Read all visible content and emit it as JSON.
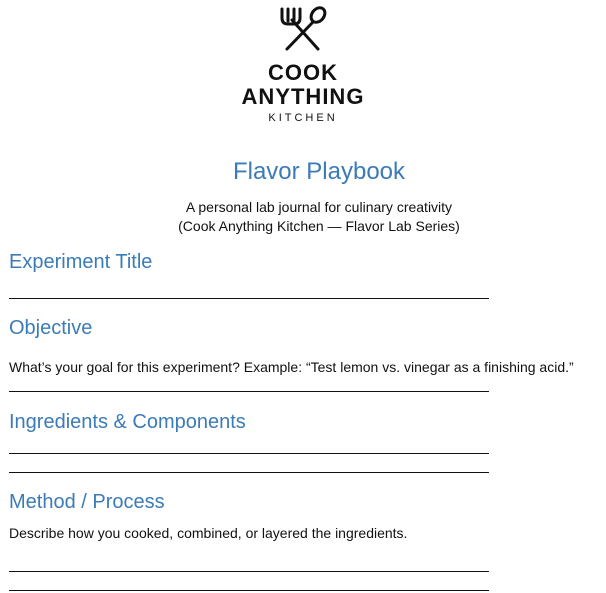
{
  "logo": {
    "icon": "crossed-fork-spoon-icon",
    "line1": "COOK",
    "line2": "ANYTHING",
    "sub": "KITCHEN"
  },
  "doc": {
    "title": "Flavor Playbook",
    "subtitle_line1": "A personal lab journal for culinary creativity",
    "subtitle_line2": "(Cook Anything Kitchen — Flavor Lab Series)"
  },
  "sections": {
    "experiment_title": {
      "heading": "Experiment Title"
    },
    "objective": {
      "heading": "Objective",
      "prompt": "What’s your goal for this experiment? Example: “Test lemon vs. vinegar as a finishing acid.”"
    },
    "ingredients": {
      "heading": "Ingredients & Components"
    },
    "method": {
      "heading": "Method / Process",
      "prompt": "Describe how you cooked, combined, or layered the ingredients."
    }
  },
  "colors": {
    "accent": "#3b7bb7",
    "text": "#111111",
    "rule": "#111111"
  }
}
